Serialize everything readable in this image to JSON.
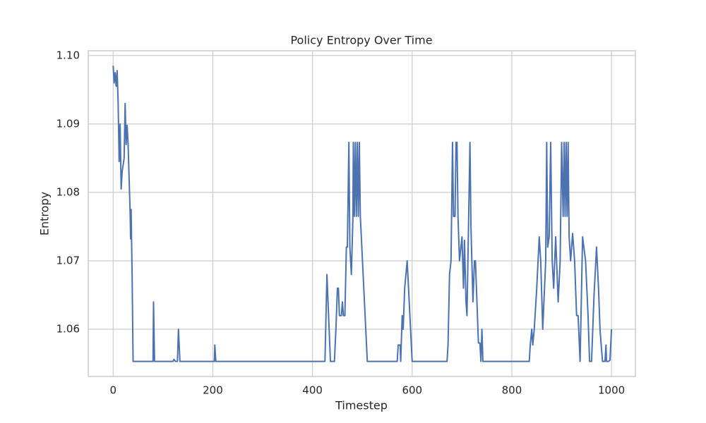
{
  "chart_data": {
    "type": "line",
    "title": "Policy Entropy Over Time",
    "xlabel": "Timestep",
    "ylabel": "Entropy",
    "color": "#4c72b0",
    "grid": true,
    "xlim": [
      -50,
      1048
    ],
    "ylim": [
      1.0531,
      1.1007
    ],
    "xticks": [
      0,
      200,
      400,
      600,
      800,
      1000
    ],
    "yticks": [
      1.06,
      1.07,
      1.08,
      1.09,
      {
        "value": 1.1,
        "label": "1.10"
      }
    ],
    "x": [
      0,
      2,
      4,
      6,
      8,
      10,
      12,
      14,
      16,
      18,
      22,
      24,
      26,
      28,
      30,
      32,
      34,
      35,
      36,
      38,
      40,
      80,
      81,
      83,
      120,
      122,
      125,
      129,
      131,
      134,
      203,
      204,
      206,
      425,
      429,
      436,
      444,
      447,
      450,
      452,
      454,
      458,
      460,
      462,
      465,
      468,
      470,
      473,
      475,
      478,
      481,
      482,
      484,
      486,
      488,
      490,
      492,
      494,
      496,
      498,
      510,
      570,
      572,
      576,
      577,
      580,
      582,
      585,
      590,
      600,
      670,
      672,
      675,
      678,
      681,
      683,
      686,
      688,
      690,
      692,
      695,
      700,
      703,
      705,
      708,
      710,
      716,
      718,
      722,
      725,
      727,
      733,
      736,
      738,
      740,
      742,
      835,
      837,
      840,
      842,
      845,
      850,
      855,
      858,
      862,
      868,
      870,
      872,
      875,
      878,
      881,
      884,
      888,
      893,
      897,
      900,
      903,
      905,
      907,
      909,
      911,
      913,
      915,
      918,
      922,
      926,
      930,
      933,
      937,
      942,
      948,
      953,
      956,
      960,
      965,
      970,
      974,
      977,
      979,
      982,
      987,
      989,
      990,
      994,
      997,
      1000
    ],
    "values": [
      1.0985,
      1.096,
      1.0975,
      1.0955,
      1.0978,
      1.093,
      1.0845,
      1.09,
      1.0805,
      1.083,
      1.085,
      1.093,
      1.087,
      1.0898,
      1.087,
      1.082,
      1.0773,
      1.0732,
      1.0775,
      1.068,
      1.0553,
      1.0553,
      1.064,
      1.0553,
      1.0553,
      1.0556,
      1.0553,
      1.0553,
      1.06,
      1.0553,
      1.0553,
      1.0577,
      1.0553,
      1.0553,
      1.068,
      1.0553,
      1.0553,
      1.06,
      1.066,
      1.066,
      1.062,
      1.062,
      1.064,
      1.062,
      1.062,
      1.072,
      1.072,
      1.0873,
      1.072,
      1.068,
      1.076,
      1.0873,
      1.0765,
      1.0873,
      1.0765,
      1.0873,
      1.0765,
      1.0873,
      1.0765,
      1.0735,
      1.0553,
      1.0553,
      1.0577,
      1.0577,
      1.0553,
      1.062,
      1.06,
      1.066,
      1.07,
      1.0553,
      1.0553,
      1.0577,
      1.068,
      1.07,
      1.0873,
      1.0765,
      1.0765,
      1.0873,
      1.0873,
      1.0765,
      1.07,
      1.0735,
      1.066,
      1.073,
      1.064,
      1.062,
      1.0873,
      1.075,
      1.064,
      1.07,
      1.07,
      1.058,
      1.058,
      1.0553,
      1.06,
      1.0553,
      1.0553,
      1.0577,
      1.06,
      1.0577,
      1.06,
      1.066,
      1.0735,
      1.07,
      1.06,
      1.07,
      1.0873,
      1.072,
      1.0735,
      1.0873,
      1.07,
      1.066,
      1.0735,
      1.064,
      1.07,
      1.0873,
      1.0765,
      1.0873,
      1.0765,
      1.0873,
      1.0765,
      1.0873,
      1.0735,
      1.07,
      1.074,
      1.07,
      1.062,
      1.062,
      1.0553,
      1.0735,
      1.07,
      1.062,
      1.0553,
      1.0553,
      1.065,
      1.072,
      1.066,
      1.06,
      1.058,
      1.0553,
      1.0553,
      1.0577,
      1.0553,
      1.0553,
      1.0555,
      1.06
    ]
  }
}
